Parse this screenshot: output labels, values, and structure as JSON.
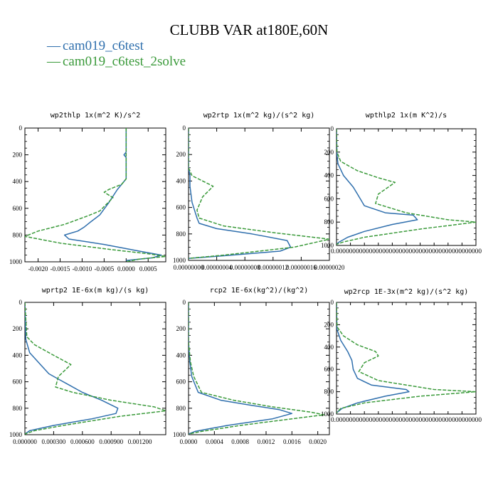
{
  "title": "CLUBB VAR at180E,60N",
  "colors": {
    "series1": "#2f6fad",
    "series2": "#3a9a3a"
  },
  "legend": [
    {
      "label": "cam019_c6test",
      "color": "#2f6fad",
      "dash": "solid"
    },
    {
      "label": "cam019_c6test_2solve",
      "color": "#3a9a3a",
      "dash": "dashed"
    }
  ],
  "chart_data": [
    {
      "type": "line",
      "title": "wp2thlp   1x(m^2 K)/s^2",
      "yticks": [
        "0",
        "200",
        "400",
        "600",
        "800",
        "1000"
      ],
      "xticks": [
        "-0.0020",
        "-0.0015",
        "-0.0010",
        "-0.0005",
        "0.0000",
        "0.0005"
      ],
      "xlim": [
        -0.0023,
        0.0009
      ],
      "ylim": [
        0,
        1000
      ],
      "y_inverted": true,
      "series": [
        {
          "name": "cam019_c6test",
          "x": [
            0,
            0,
            -5e-05,
            0,
            0,
            -0.0002,
            -0.0004,
            -0.0006,
            -0.0008,
            -0.00095,
            -0.0011,
            -0.0014,
            -0.0013,
            -0.0005,
            0.0003,
            0.0008,
            0.0006,
            0
          ],
          "y": [
            0,
            180,
            200,
            220,
            380,
            460,
            560,
            650,
            700,
            740,
            770,
            800,
            830,
            870,
            920,
            950,
            970,
            990
          ]
        },
        {
          "name": "cam019_c6test_2solve",
          "x": [
            0,
            0,
            -0.0001,
            -0.0004,
            -0.0005,
            -0.0003,
            -0.0006,
            -0.0009,
            -0.0014,
            -0.002,
            -0.0023,
            -0.0015,
            -0.0003,
            0.0005,
            0.0009,
            0.0003,
            0
          ],
          "y": [
            0,
            380,
            420,
            460,
            480,
            520,
            620,
            660,
            720,
            770,
            810,
            860,
            910,
            940,
            960,
            980,
            1000
          ]
        }
      ]
    },
    {
      "type": "line",
      "title": "wp2rtp   1x(m^2 kg)/(s^2 kg)",
      "yticks": [
        "0",
        "200",
        "400",
        "600",
        "800",
        "1000"
      ],
      "xticks": [
        "0.00000000",
        "0.00000004",
        "0.00000008",
        "0.00000012",
        "0.00000016",
        "0.00000020"
      ],
      "xlim": [
        0,
        2e-07
      ],
      "ylim": [
        0,
        1000
      ],
      "y_inverted": true,
      "series": [
        {
          "name": "cam019_c6test",
          "x": [
            0,
            0,
            2e-09,
            2e-09,
            5e-09,
            1.2e-08,
            1.5e-08,
            4e-08,
            9e-08,
            1.4e-07,
            1.45e-07,
            1.3e-07,
            5e-08,
            0
          ],
          "y": [
            0,
            300,
            360,
            440,
            560,
            680,
            720,
            760,
            800,
            850,
            900,
            930,
            965,
            985
          ]
        },
        {
          "name": "cam019_c6test_2solve",
          "x": [
            0,
            0,
            5e-09,
            2e-08,
            3.5e-08,
            2e-08,
            1.2e-08,
            1.5e-08,
            5e-08,
            1.2e-07,
            2e-07,
            1.5e-07,
            5e-08,
            0
          ],
          "y": [
            0,
            300,
            360,
            400,
            440,
            520,
            620,
            680,
            740,
            790,
            840,
            900,
            960,
            985
          ]
        }
      ]
    },
    {
      "type": "line",
      "title": "wpthlp2   1x(m K^2)/s",
      "yticks": [
        "0",
        "200",
        "400",
        "600",
        "800",
        "1000"
      ],
      "xticks": [],
      "xtick_label": "0.00000000000000000000000000000000000000000000",
      "xlim": [
        0,
        1
      ],
      "ylim": [
        0,
        1000
      ],
      "y_inverted": true,
      "series": [
        {
          "name": "cam019_c6test",
          "x": [
            0,
            0.003,
            0.01,
            0.05,
            0.12,
            0.15,
            0.2,
            0.35,
            0.55,
            0.58,
            0.4,
            0.2,
            0.08,
            0.02,
            0
          ],
          "y": [
            0,
            220,
            300,
            400,
            500,
            560,
            660,
            720,
            740,
            780,
            820,
            880,
            930,
            970,
            990
          ]
        },
        {
          "name": "cam019_c6test_2solve",
          "x": [
            0,
            0.003,
            0.03,
            0.15,
            0.3,
            0.42,
            0.3,
            0.28,
            0.5,
            0.8,
            1,
            0.6,
            0.2,
            0.05,
            0
          ],
          "y": [
            0,
            200,
            280,
            360,
            420,
            460,
            560,
            640,
            720,
            780,
            800,
            860,
            930,
            970,
            990
          ]
        }
      ]
    },
    {
      "type": "line",
      "title": "wprtp2   1E-6x(m kg)/(s kg)",
      "yticks": [
        "0",
        "200",
        "400",
        "600",
        "800",
        "1000"
      ],
      "xticks": [
        "0.000000",
        "0.000300",
        "0.000600",
        "0.000900",
        "0.001200"
      ],
      "xlim": [
        0,
        0.00147
      ],
      "ylim": [
        0,
        1000
      ],
      "y_inverted": true,
      "series": [
        {
          "name": "cam019_c6test",
          "x": [
            0,
            1e-05,
            5e-05,
            0.00015,
            0.00025,
            0.00035,
            0.00045,
            0.0006,
            0.0008,
            0.00097,
            0.00095,
            0.0007,
            0.0003,
            5e-05,
            0
          ],
          "y": [
            0,
            280,
            380,
            460,
            540,
            580,
            620,
            680,
            740,
            800,
            840,
            880,
            930,
            970,
            995
          ]
        },
        {
          "name": "cam019_c6test_2solve",
          "x": [
            0,
            2e-05,
            0.0001,
            0.0003,
            0.00048,
            0.00035,
            0.00032,
            0.0005,
            0.0009,
            0.00135,
            0.00147,
            0.001,
            0.0004,
            0.0001,
            0
          ],
          "y": [
            0,
            260,
            320,
            400,
            470,
            560,
            640,
            680,
            740,
            790,
            820,
            860,
            930,
            970,
            995
          ]
        }
      ]
    },
    {
      "type": "line",
      "title": "rcp2   1E-6x(kg^2)/(kg^2)",
      "yticks": [
        "0",
        "200",
        "400",
        "600",
        "800",
        "1000"
      ],
      "xticks": [
        "0.0000",
        "0.0004",
        "0.0008",
        "0.0012",
        "0.0016",
        "0.0020"
      ],
      "xlim": [
        0,
        0.00218
      ],
      "ylim": [
        0,
        1000
      ],
      "y_inverted": true,
      "series": [
        {
          "name": "cam019_c6test",
          "x": [
            0,
            0,
            2e-05,
            5e-05,
            0.00015,
            0.0005,
            0.001,
            0.0014,
            0.0016,
            0.0013,
            0.0006,
            0.0001,
            0
          ],
          "y": [
            0,
            300,
            450,
            560,
            680,
            740,
            780,
            810,
            840,
            880,
            930,
            975,
            995
          ]
        },
        {
          "name": "cam019_c6test_2solve",
          "x": [
            0,
            0,
            3e-05,
            8e-05,
            0.0002,
            0.0007,
            0.0013,
            0.0019,
            0.0021,
            0.0016,
            0.0008,
            0.0002,
            0
          ],
          "y": [
            0,
            300,
            450,
            560,
            680,
            740,
            790,
            830,
            850,
            880,
            930,
            975,
            995
          ]
        }
      ]
    },
    {
      "type": "line",
      "title": "wp2rcp   1E-3x(m^2 kg)/(s^2 kg)",
      "yticks": [
        "0",
        "200",
        "400",
        "600",
        "800",
        "1000"
      ],
      "xticks": [],
      "xtick_label": "0.00000000000000000000000000000000000000000000",
      "xlim": [
        0,
        1
      ],
      "ylim": [
        0,
        1000
      ],
      "y_inverted": true,
      "series": [
        {
          "name": "cam019_c6test",
          "x": [
            0,
            0.003,
            0.03,
            0.08,
            0.11,
            0.12,
            0.15,
            0.25,
            0.5,
            0.52,
            0.35,
            0.15,
            0.04,
            0
          ],
          "y": [
            0,
            240,
            340,
            440,
            520,
            600,
            680,
            740,
            780,
            800,
            840,
            900,
            950,
            990
          ]
        },
        {
          "name": "cam019_c6test_2solve",
          "x": [
            0,
            0.004,
            0.05,
            0.15,
            0.28,
            0.3,
            0.2,
            0.16,
            0.3,
            0.7,
            1,
            0.6,
            0.2,
            0.03,
            0
          ],
          "y": [
            0,
            220,
            300,
            380,
            440,
            480,
            540,
            620,
            700,
            780,
            800,
            840,
            900,
            950,
            990
          ]
        }
      ]
    }
  ]
}
